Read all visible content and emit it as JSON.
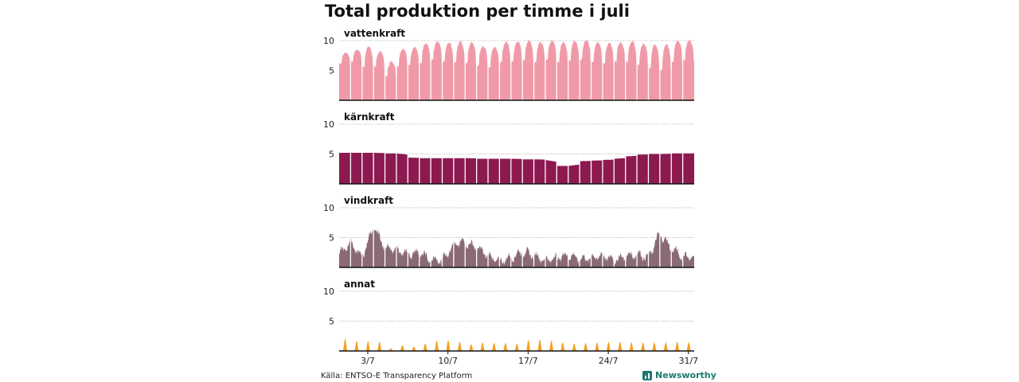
{
  "title": "Total produktion per timme i juli",
  "source": "Källa: ENTSO-E Transparency Platform",
  "brand": {
    "name": "Newsworthy",
    "icon": "bar-chart-logo-icon"
  },
  "chart_data": [
    {
      "type": "area",
      "label": "vattenkraft",
      "color": "#f09aa8",
      "ylim": [
        0,
        10
      ],
      "yticks": [
        5,
        10
      ],
      "x": [
        "1/7",
        "2/7",
        "3/7",
        "4/7",
        "5/7",
        "6/7",
        "7/7",
        "8/7",
        "9/7",
        "10/7",
        "11/7",
        "12/7",
        "13/7",
        "14/7",
        "15/7",
        "16/7",
        "17/7",
        "18/7",
        "19/7",
        "20/7",
        "21/7",
        "22/7",
        "23/7",
        "24/7",
        "25/7",
        "26/7",
        "27/7",
        "28/7",
        "29/7",
        "30/7",
        "31/7"
      ],
      "peaks": [
        8.0,
        8.5,
        9.0,
        8.2,
        6.5,
        8.7,
        8.9,
        9.5,
        9.9,
        9.7,
        9.8,
        9.7,
        9.1,
        9.0,
        9.8,
        9.9,
        10.0,
        9.7,
        10.0,
        9.8,
        9.9,
        10.0,
        9.8,
        9.6,
        9.7,
        9.9,
        9.5,
        9.3,
        9.4,
        10.0,
        10.1
      ],
      "troughs": [
        6.2,
        6.5,
        5.6,
        5.5,
        4.1,
        5.8,
        6.0,
        6.2,
        6.8,
        6.5,
        6.4,
        6.3,
        5.9,
        5.6,
        6.3,
        6.5,
        6.7,
        6.4,
        6.8,
        6.4,
        6.6,
        6.8,
        6.5,
        6.2,
        6.4,
        6.5,
        6.0,
        5.3,
        5.0,
        6.5,
        6.8
      ]
    },
    {
      "type": "area",
      "label": "kärnkraft",
      "color": "#8c1a50",
      "ylim": [
        0,
        10
      ],
      "yticks": [
        5,
        10
      ],
      "x": [
        "1/7",
        "2/7",
        "3/7",
        "4/7",
        "5/7",
        "6/7",
        "7/7",
        "8/7",
        "9/7",
        "10/7",
        "11/7",
        "12/7",
        "13/7",
        "14/7",
        "15/7",
        "16/7",
        "17/7",
        "18/7",
        "19/7",
        "20/7",
        "21/7",
        "22/7",
        "23/7",
        "24/7",
        "25/7",
        "26/7",
        "27/7",
        "28/7",
        "29/7",
        "30/7",
        "31/7"
      ],
      "values": [
        5.2,
        5.2,
        5.2,
        5.2,
        5.1,
        5.1,
        4.4,
        4.3,
        4.3,
        4.3,
        4.3,
        4.3,
        4.2,
        4.2,
        4.2,
        4.2,
        4.1,
        4.1,
        4.0,
        3.0,
        3.0,
        3.8,
        3.9,
        4.0,
        4.2,
        4.6,
        4.9,
        5.0,
        5.0,
        5.1,
        5.1
      ]
    },
    {
      "type": "area",
      "label": "vindkraft",
      "color": "#8a6a73",
      "ylim": [
        0,
        10
      ],
      "yticks": [
        5,
        10
      ],
      "x": [
        "1/7",
        "2/7",
        "3/7",
        "4/7",
        "5/7",
        "6/7",
        "7/7",
        "8/7",
        "9/7",
        "10/7",
        "11/7",
        "12/7",
        "13/7",
        "14/7",
        "15/7",
        "16/7",
        "17/7",
        "18/7",
        "19/7",
        "20/7",
        "21/7",
        "22/7",
        "23/7",
        "24/7",
        "25/7",
        "26/7",
        "27/7",
        "28/7",
        "29/7",
        "30/7",
        "31/7"
      ],
      "values": [
        2.1,
        4.3,
        1.7,
        6.8,
        3.3,
        2.9,
        2.2,
        2.6,
        1.1,
        1.3,
        3.9,
        4.2,
        3.3,
        2.0,
        1.0,
        1.7,
        2.6,
        2.1,
        1.2,
        1.7,
        2.1,
        1.4,
        1.6,
        2.0,
        1.3,
        1.8,
        2.3,
        1.7,
        5.7,
        3.2,
        1.8
      ]
    },
    {
      "type": "area",
      "label": "annat",
      "color": "#f5a020",
      "ylim": [
        0,
        10
      ],
      "yticks": [
        5,
        10
      ],
      "x": [
        "1/7",
        "2/7",
        "3/7",
        "4/7",
        "5/7",
        "6/7",
        "7/7",
        "8/7",
        "9/7",
        "10/7",
        "11/7",
        "12/7",
        "13/7",
        "14/7",
        "15/7",
        "16/7",
        "17/7",
        "18/7",
        "19/7",
        "20/7",
        "21/7",
        "22/7",
        "23/7",
        "24/7",
        "25/7",
        "26/7",
        "27/7",
        "28/7",
        "29/7",
        "30/7",
        "31/7"
      ],
      "peaks": [
        2.0,
        1.6,
        1.6,
        1.5,
        0.4,
        0.9,
        0.7,
        1.2,
        1.7,
        1.8,
        1.5,
        1.1,
        1.4,
        1.3,
        1.3,
        1.2,
        1.8,
        1.9,
        1.7,
        1.4,
        1.2,
        1.3,
        1.4,
        1.5,
        1.5,
        1.4,
        1.4,
        1.4,
        1.4,
        1.5,
        1.4
      ]
    }
  ],
  "xaxis": {
    "ticks": [
      "3/7",
      "10/7",
      "17/7",
      "24/7",
      "31/7"
    ],
    "tick_days": [
      3,
      10,
      17,
      24,
      31
    ]
  }
}
